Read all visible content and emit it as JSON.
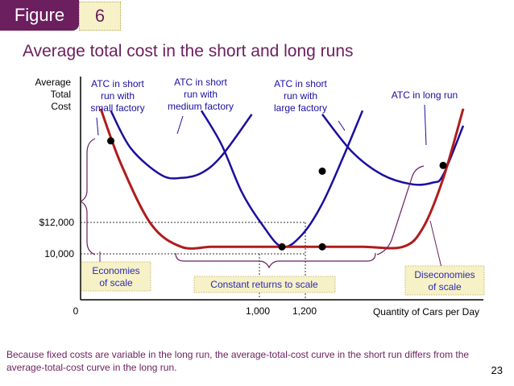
{
  "header": {
    "figure_label": "Figure",
    "figure_number": "6"
  },
  "title": "Average total cost in the short and long runs",
  "caption": "Because fixed costs are variable in the long run, the average-total-cost curve in the short run differs from the average-total-cost curve in the long run.",
  "page_number": "23",
  "colors": {
    "short_run_curve": "#1b0f9e",
    "long_run_curve": "#b01c1c",
    "label_text": "#1b0f9e",
    "label_box_fill": "#f7f1c8",
    "label_box_text": "#2a2ab0",
    "title_purple": "#6b1f5e",
    "brace": "#6b1f5e"
  },
  "chart_data": {
    "type": "line",
    "ylabel": "Average Total Cost",
    "xlabel": "Quantity of Cars per Day",
    "x_ticks": [
      "0",
      "1,000",
      "1,200"
    ],
    "y_ticks": [
      "$12,000",
      "10,000"
    ],
    "series": [
      {
        "name": "ATC in short run with small factory",
        "kind": "short-run",
        "x": [
          150,
          250,
          400,
          500,
          600,
          700,
          850
        ],
        "y": [
          13600,
          12600,
          11900,
          11820,
          11950,
          12400,
          13500
        ]
      },
      {
        "name": "ATC in short run with medium factory",
        "kind": "short-run",
        "x": [
          600,
          700,
          800,
          900,
          1000,
          1100,
          1200,
          1300,
          1400
        ],
        "y": [
          13600,
          12700,
          11450,
          10600,
          10000,
          10320,
          11140,
          12320,
          13600
        ]
      },
      {
        "name": "ATC in short run with large factory",
        "kind": "short-run",
        "x": [
          1200,
          1350,
          1500,
          1650,
          1750,
          1800,
          1900
        ],
        "y": [
          13500,
          12500,
          11900,
          11650,
          11700,
          11900,
          13200
        ]
      },
      {
        "name": "ATC in long run",
        "kind": "long-run",
        "x": [
          100,
          200,
          350,
          500,
          650,
          800,
          1000,
          1200,
          1400,
          1600,
          1700,
          1800,
          1900
        ],
        "y": [
          13650,
          12200,
          10600,
          10000,
          10000,
          10000,
          10000,
          10000,
          10000,
          10000,
          10500,
          11800,
          13650
        ]
      }
    ],
    "points": [
      {
        "x": 150,
        "y": 12800
      },
      {
        "x": 1000,
        "y": 10000
      },
      {
        "x": 1200,
        "y": 12000
      },
      {
        "x": 1200,
        "y": 10000
      },
      {
        "x": 1800,
        "y": 12150
      }
    ],
    "annotations": [
      "Economies of scale",
      "Constant returns to scale",
      "Diseconomies of scale"
    ],
    "curve_labels": {
      "small": [
        "ATC in short",
        "run with",
        "small factory"
      ],
      "medium": [
        "ATC in short",
        "run with",
        "medium factory"
      ],
      "large": [
        "ATC in short",
        "run with",
        "large factory"
      ],
      "long": [
        "ATC in long run"
      ]
    },
    "yaxis_label_lines": [
      "Average",
      "Total",
      "Cost"
    ],
    "xlim": [
      0,
      2000
    ],
    "ylim": [
      8600,
      14500
    ],
    "grid": false,
    "legend": "none"
  }
}
